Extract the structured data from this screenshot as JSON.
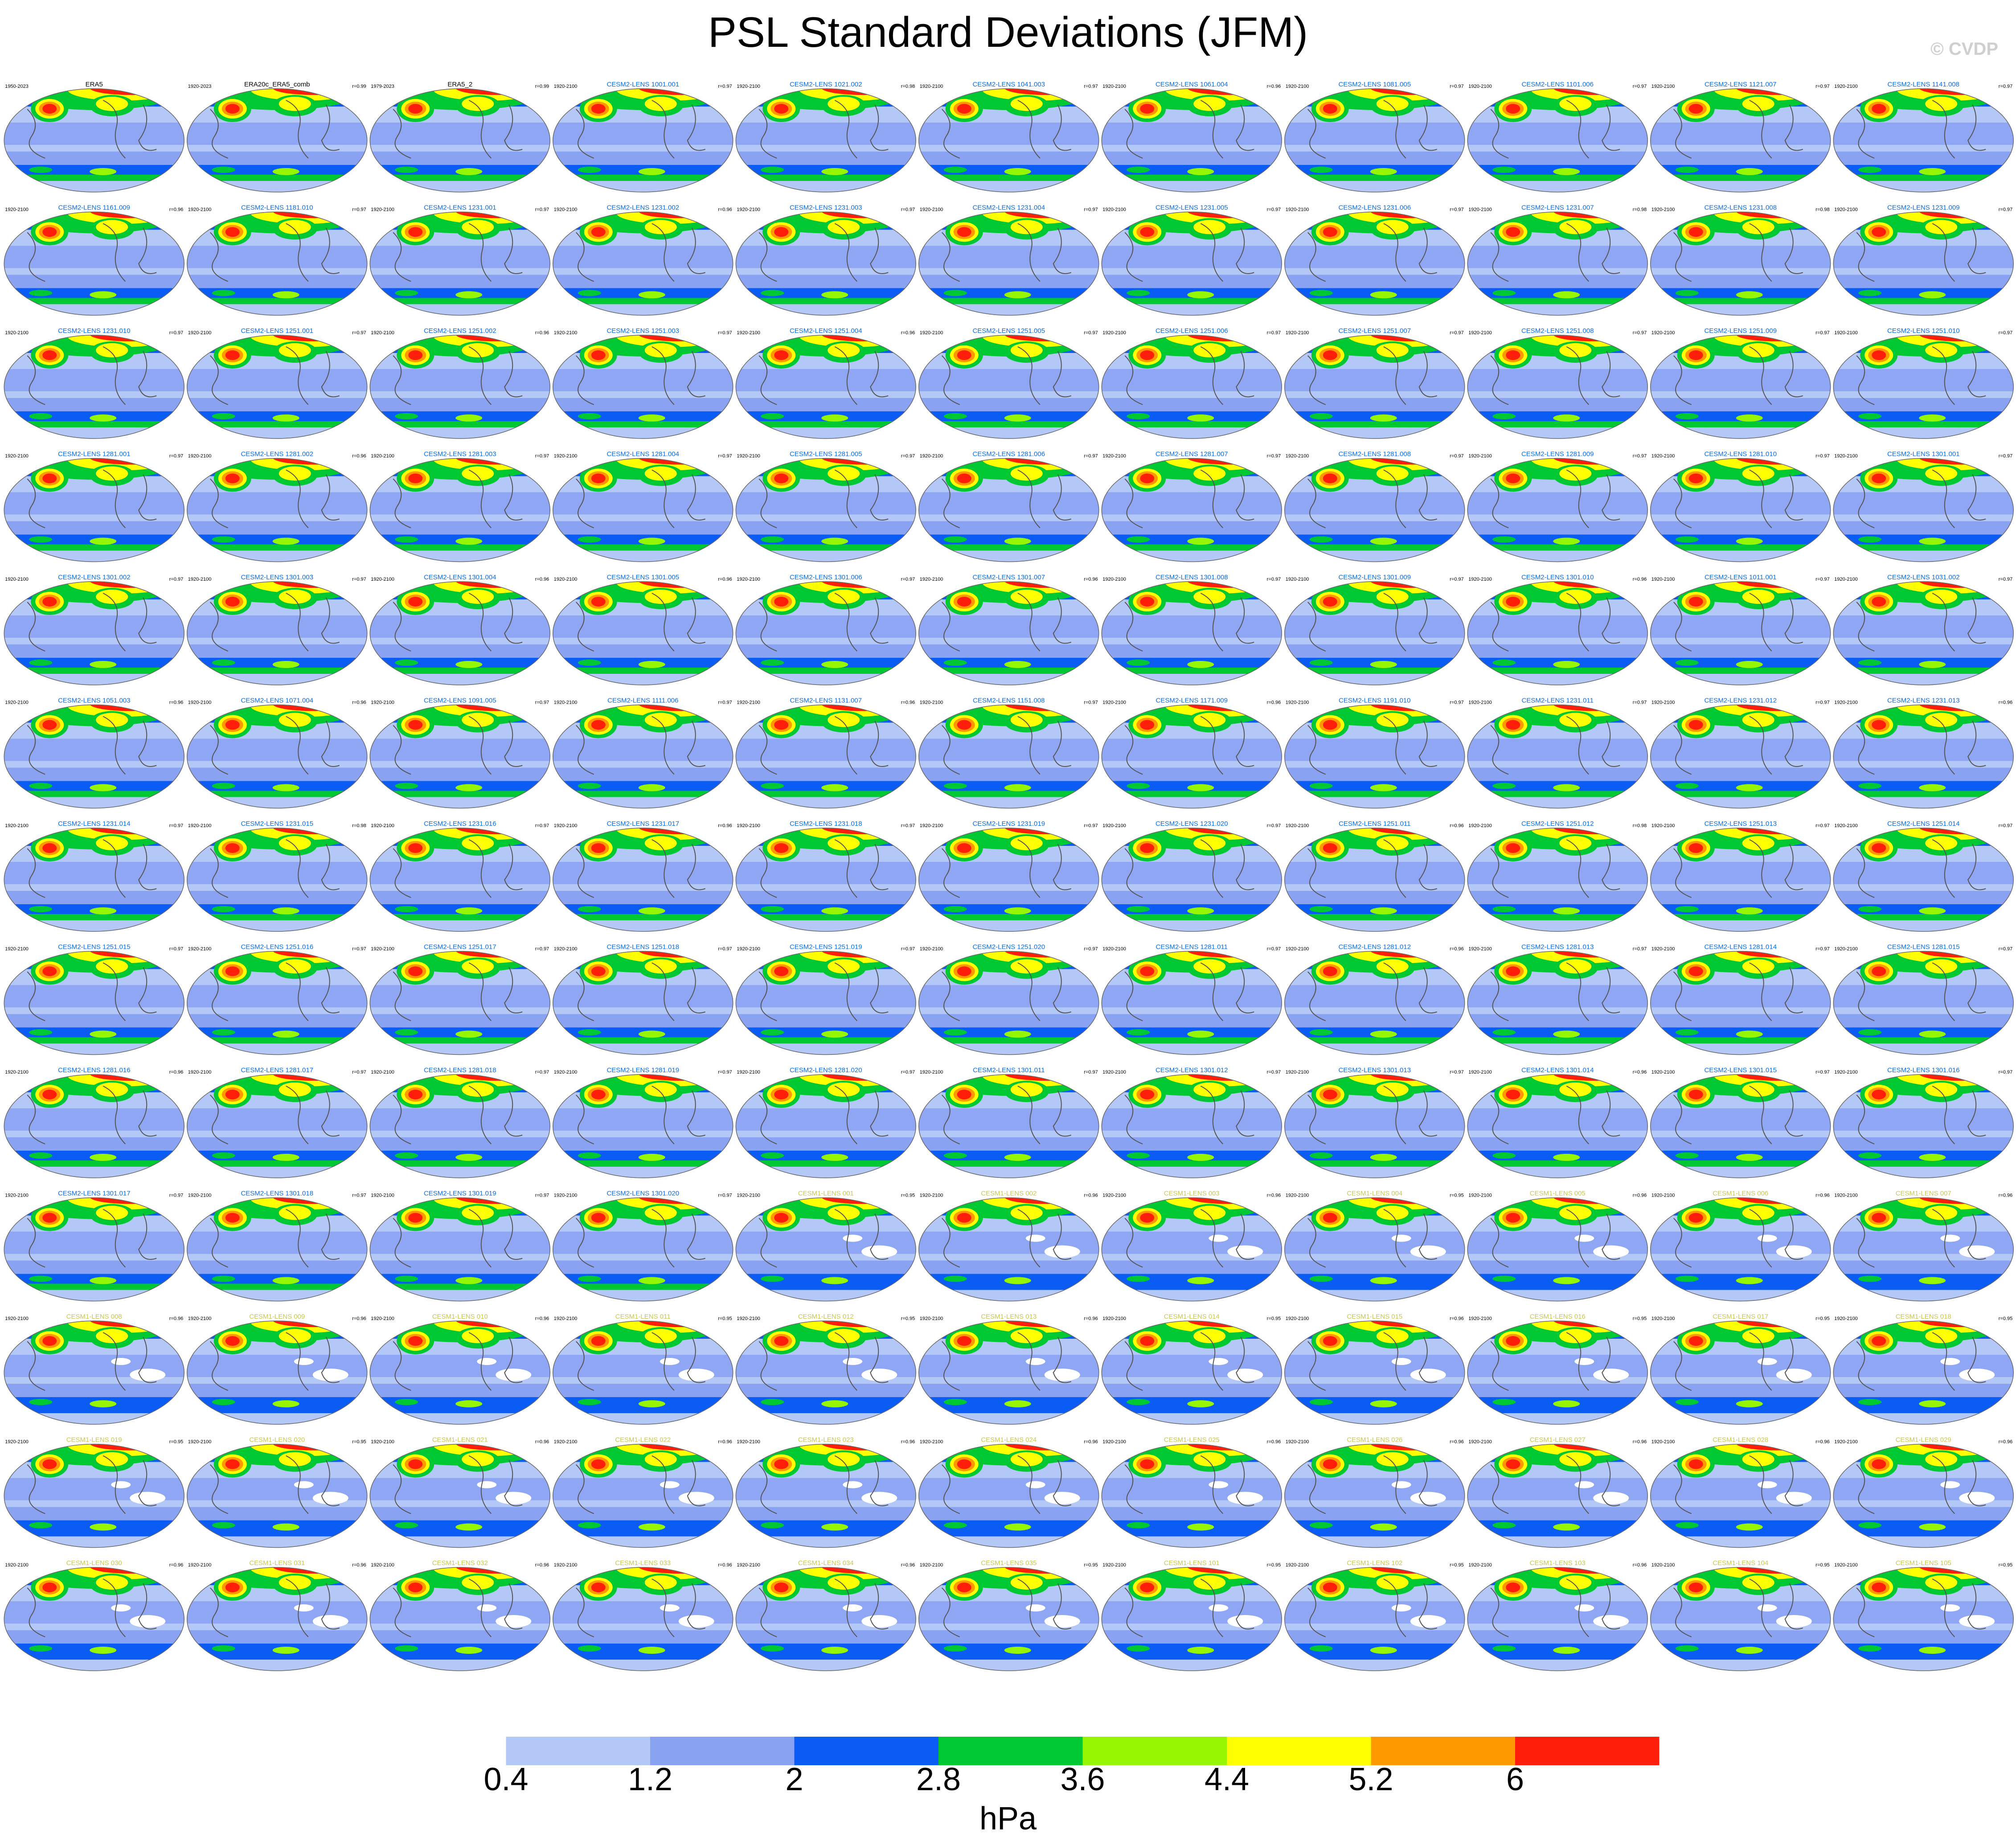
{
  "title": "PSL Standard Deviations (JFM)",
  "watermark": "© CVDP",
  "colorbar": {
    "unit": "hPa",
    "tick_labels": [
      "0.4",
      "1.2",
      "2",
      "2.8",
      "3.6",
      "4.4",
      "5.2",
      "6"
    ],
    "colors": [
      "#ffffff",
      "#b4c8f8",
      "#8aa2f2",
      "#0a5cf5",
      "#00c832",
      "#96f500",
      "#ffff00",
      "#ff9900",
      "#ff1e0a"
    ]
  },
  "chart_data": {
    "type": "heatmap",
    "title": "PSL Standard Deviations (JFM)",
    "variable": "PSL standard deviation",
    "season": "JFM",
    "unit": "hPa",
    "levels": [
      0.4,
      1.2,
      2,
      2.8,
      3.6,
      4.4,
      5.2,
      6
    ],
    "grid_shape": [
      13,
      11
    ],
    "observation_color": "#000000",
    "cesm2_color": "#0a6ee6",
    "cesm1_color": "#c8c850",
    "panels": [
      {
        "title": "ERA5",
        "years": "1950-2023",
        "r": "",
        "kind": "obs"
      },
      {
        "title": "ERA20c_ERA5_comb",
        "years": "1920-2023",
        "r": "r=0.99",
        "kind": "obs"
      },
      {
        "title": "ERA5_2",
        "years": "1979-2023",
        "r": "r=0.99",
        "kind": "obs"
      },
      {
        "title": "CESM2-LENS 1001.001",
        "years": "1920-2100",
        "r": "r=0.97",
        "kind": "cesm2"
      },
      {
        "title": "CESM2-LENS 1021.002",
        "years": "1920-2100",
        "r": "r=0.98",
        "kind": "cesm2"
      },
      {
        "title": "CESM2-LENS 1041.003",
        "years": "1920-2100",
        "r": "r=0.97",
        "kind": "cesm2"
      },
      {
        "title": "CESM2-LENS 1061.004",
        "years": "1920-2100",
        "r": "r=0.96",
        "kind": "cesm2"
      },
      {
        "title": "CESM2-LENS 1081.005",
        "years": "1920-2100",
        "r": "r=0.97",
        "kind": "cesm2"
      },
      {
        "title": "CESM2-LENS 1101.006",
        "years": "1920-2100",
        "r": "r=0.97",
        "kind": "cesm2"
      },
      {
        "title": "CESM2-LENS 1121.007",
        "years": "1920-2100",
        "r": "r=0.97",
        "kind": "cesm2"
      },
      {
        "title": "CESM2-LENS 1141.008",
        "years": "1920-2100",
        "r": "r=0.97",
        "kind": "cesm2"
      },
      {
        "title": "CESM2-LENS 1161.009",
        "years": "1920-2100",
        "r": "r=0.96",
        "kind": "cesm2"
      },
      {
        "title": "CESM2-LENS 1181.010",
        "years": "1920-2100",
        "r": "r=0.97",
        "kind": "cesm2"
      },
      {
        "title": "CESM2-LENS 1231.001",
        "years": "1920-2100",
        "r": "r=0.97",
        "kind": "cesm2"
      },
      {
        "title": "CESM2-LENS 1231.002",
        "years": "1920-2100",
        "r": "r=0.96",
        "kind": "cesm2"
      },
      {
        "title": "CESM2-LENS 1231.003",
        "years": "1920-2100",
        "r": "r=0.97",
        "kind": "cesm2"
      },
      {
        "title": "CESM2-LENS 1231.004",
        "years": "1920-2100",
        "r": "r=0.97",
        "kind": "cesm2"
      },
      {
        "title": "CESM2-LENS 1231.005",
        "years": "1920-2100",
        "r": "r=0.97",
        "kind": "cesm2"
      },
      {
        "title": "CESM2-LENS 1231.006",
        "years": "1920-2100",
        "r": "r=0.97",
        "kind": "cesm2"
      },
      {
        "title": "CESM2-LENS 1231.007",
        "years": "1920-2100",
        "r": "r=0.98",
        "kind": "cesm2"
      },
      {
        "title": "CESM2-LENS 1231.008",
        "years": "1920-2100",
        "r": "r=0.98",
        "kind": "cesm2"
      },
      {
        "title": "CESM2-LENS 1231.009",
        "years": "1920-2100",
        "r": "r=0.97",
        "kind": "cesm2"
      },
      {
        "title": "CESM2-LENS 1231.010",
        "years": "1920-2100",
        "r": "r=0.97",
        "kind": "cesm2"
      },
      {
        "title": "CESM2-LENS 1251.001",
        "years": "1920-2100",
        "r": "r=0.97",
        "kind": "cesm2"
      },
      {
        "title": "CESM2-LENS 1251.002",
        "years": "1920-2100",
        "r": "r=0.96",
        "kind": "cesm2"
      },
      {
        "title": "CESM2-LENS 1251.003",
        "years": "1920-2100",
        "r": "r=0.97",
        "kind": "cesm2"
      },
      {
        "title": "CESM2-LENS 1251.004",
        "years": "1920-2100",
        "r": "r=0.96",
        "kind": "cesm2"
      },
      {
        "title": "CESM2-LENS 1251.005",
        "years": "1920-2100",
        "r": "r=0.97",
        "kind": "cesm2"
      },
      {
        "title": "CESM2-LENS 1251.006",
        "years": "1920-2100",
        "r": "r=0.97",
        "kind": "cesm2"
      },
      {
        "title": "CESM2-LENS 1251.007",
        "years": "1920-2100",
        "r": "r=0.97",
        "kind": "cesm2"
      },
      {
        "title": "CESM2-LENS 1251.008",
        "years": "1920-2100",
        "r": "r=0.97",
        "kind": "cesm2"
      },
      {
        "title": "CESM2-LENS 1251.009",
        "years": "1920-2100",
        "r": "r=0.97",
        "kind": "cesm2"
      },
      {
        "title": "CESM2-LENS 1251.010",
        "years": "1920-2100",
        "r": "r=0.97",
        "kind": "cesm2"
      },
      {
        "title": "CESM2-LENS 1281.001",
        "years": "1920-2100",
        "r": "r=0.97",
        "kind": "cesm2"
      },
      {
        "title": "CESM2-LENS 1281.002",
        "years": "1920-2100",
        "r": "r=0.96",
        "kind": "cesm2"
      },
      {
        "title": "CESM2-LENS 1281.003",
        "years": "1920-2100",
        "r": "r=0.97",
        "kind": "cesm2"
      },
      {
        "title": "CESM2-LENS 1281.004",
        "years": "1920-2100",
        "r": "r=0.97",
        "kind": "cesm2"
      },
      {
        "title": "CESM2-LENS 1281.005",
        "years": "1920-2100",
        "r": "r=0.97",
        "kind": "cesm2"
      },
      {
        "title": "CESM2-LENS 1281.006",
        "years": "1920-2100",
        "r": "r=0.97",
        "kind": "cesm2"
      },
      {
        "title": "CESM2-LENS 1281.007",
        "years": "1920-2100",
        "r": "r=0.97",
        "kind": "cesm2"
      },
      {
        "title": "CESM2-LENS 1281.008",
        "years": "1920-2100",
        "r": "r=0.97",
        "kind": "cesm2"
      },
      {
        "title": "CESM2-LENS 1281.009",
        "years": "1920-2100",
        "r": "r=0.97",
        "kind": "cesm2"
      },
      {
        "title": "CESM2-LENS 1281.010",
        "years": "1920-2100",
        "r": "r=0.97",
        "kind": "cesm2"
      },
      {
        "title": "CESM2-LENS 1301.001",
        "years": "1920-2100",
        "r": "r=0.97",
        "kind": "cesm2"
      },
      {
        "title": "CESM2-LENS 1301.002",
        "years": "1920-2100",
        "r": "r=0.97",
        "kind": "cesm2"
      },
      {
        "title": "CESM2-LENS 1301.003",
        "years": "1920-2100",
        "r": "r=0.97",
        "kind": "cesm2"
      },
      {
        "title": "CESM2-LENS 1301.004",
        "years": "1920-2100",
        "r": "r=0.96",
        "kind": "cesm2"
      },
      {
        "title": "CESM2-LENS 1301.005",
        "years": "1920-2100",
        "r": "r=0.96",
        "kind": "cesm2"
      },
      {
        "title": "CESM2-LENS 1301.006",
        "years": "1920-2100",
        "r": "r=0.97",
        "kind": "cesm2"
      },
      {
        "title": "CESM2-LENS 1301.007",
        "years": "1920-2100",
        "r": "r=0.96",
        "kind": "cesm2"
      },
      {
        "title": "CESM2-LENS 1301.008",
        "years": "1920-2100",
        "r": "r=0.97",
        "kind": "cesm2"
      },
      {
        "title": "CESM2-LENS 1301.009",
        "years": "1920-2100",
        "r": "r=0.97",
        "kind": "cesm2"
      },
      {
        "title": "CESM2-LENS 1301.010",
        "years": "1920-2100",
        "r": "r=0.96",
        "kind": "cesm2"
      },
      {
        "title": "CESM2-LENS 1011.001",
        "years": "1920-2100",
        "r": "r=0.97",
        "kind": "cesm2"
      },
      {
        "title": "CESM2-LENS 1031.002",
        "years": "1920-2100",
        "r": "r=0.97",
        "kind": "cesm2"
      },
      {
        "title": "CESM2-LENS 1051.003",
        "years": "1920-2100",
        "r": "r=0.96",
        "kind": "cesm2"
      },
      {
        "title": "CESM2-LENS 1071.004",
        "years": "1920-2100",
        "r": "r=0.96",
        "kind": "cesm2"
      },
      {
        "title": "CESM2-LENS 1091.005",
        "years": "1920-2100",
        "r": "r=0.97",
        "kind": "cesm2"
      },
      {
        "title": "CESM2-LENS 1111.006",
        "years": "1920-2100",
        "r": "r=0.97",
        "kind": "cesm2"
      },
      {
        "title": "CESM2-LENS 1131.007",
        "years": "1920-2100",
        "r": "r=0.96",
        "kind": "cesm2"
      },
      {
        "title": "CESM2-LENS 1151.008",
        "years": "1920-2100",
        "r": "r=0.97",
        "kind": "cesm2"
      },
      {
        "title": "CESM2-LENS 1171.009",
        "years": "1920-2100",
        "r": "r=0.96",
        "kind": "cesm2"
      },
      {
        "title": "CESM2-LENS 1191.010",
        "years": "1920-2100",
        "r": "r=0.97",
        "kind": "cesm2"
      },
      {
        "title": "CESM2-LENS 1231.011",
        "years": "1920-2100",
        "r": "r=0.97",
        "kind": "cesm2"
      },
      {
        "title": "CESM2-LENS 1231.012",
        "years": "1920-2100",
        "r": "r=0.97",
        "kind": "cesm2"
      },
      {
        "title": "CESM2-LENS 1231.013",
        "years": "1920-2100",
        "r": "r=0.96",
        "kind": "cesm2"
      },
      {
        "title": "CESM2-LENS 1231.014",
        "years": "1920-2100",
        "r": "r=0.97",
        "kind": "cesm2"
      },
      {
        "title": "CESM2-LENS 1231.015",
        "years": "1920-2100",
        "r": "r=0.98",
        "kind": "cesm2"
      },
      {
        "title": "CESM2-LENS 1231.016",
        "years": "1920-2100",
        "r": "r=0.97",
        "kind": "cesm2"
      },
      {
        "title": "CESM2-LENS 1231.017",
        "years": "1920-2100",
        "r": "r=0.96",
        "kind": "cesm2"
      },
      {
        "title": "CESM2-LENS 1231.018",
        "years": "1920-2100",
        "r": "r=0.97",
        "kind": "cesm2"
      },
      {
        "title": "CESM2-LENS 1231.019",
        "years": "1920-2100",
        "r": "r=0.97",
        "kind": "cesm2"
      },
      {
        "title": "CESM2-LENS 1231.020",
        "years": "1920-2100",
        "r": "r=0.97",
        "kind": "cesm2"
      },
      {
        "title": "CESM2-LENS 1251.011",
        "years": "1920-2100",
        "r": "r=0.96",
        "kind": "cesm2"
      },
      {
        "title": "CESM2-LENS 1251.012",
        "years": "1920-2100",
        "r": "r=0.98",
        "kind": "cesm2"
      },
      {
        "title": "CESM2-LENS 1251.013",
        "years": "1920-2100",
        "r": "r=0.97",
        "kind": "cesm2"
      },
      {
        "title": "CESM2-LENS 1251.014",
        "years": "1920-2100",
        "r": "r=0.97",
        "kind": "cesm2"
      },
      {
        "title": "CESM2-LENS 1251.015",
        "years": "1920-2100",
        "r": "r=0.97",
        "kind": "cesm2"
      },
      {
        "title": "CESM2-LENS 1251.016",
        "years": "1920-2100",
        "r": "r=0.97",
        "kind": "cesm2"
      },
      {
        "title": "CESM2-LENS 1251.017",
        "years": "1920-2100",
        "r": "r=0.97",
        "kind": "cesm2"
      },
      {
        "title": "CESM2-LENS 1251.018",
        "years": "1920-2100",
        "r": "r=0.97",
        "kind": "cesm2"
      },
      {
        "title": "CESM2-LENS 1251.019",
        "years": "1920-2100",
        "r": "r=0.97",
        "kind": "cesm2"
      },
      {
        "title": "CESM2-LENS 1251.020",
        "years": "1920-2100",
        "r": "r=0.97",
        "kind": "cesm2"
      },
      {
        "title": "CESM2-LENS 1281.011",
        "years": "1920-2100",
        "r": "r=0.97",
        "kind": "cesm2"
      },
      {
        "title": "CESM2-LENS 1281.012",
        "years": "1920-2100",
        "r": "r=0.96",
        "kind": "cesm2"
      },
      {
        "title": "CESM2-LENS 1281.013",
        "years": "1920-2100",
        "r": "r=0.97",
        "kind": "cesm2"
      },
      {
        "title": "CESM2-LENS 1281.014",
        "years": "1920-2100",
        "r": "r=0.97",
        "kind": "cesm2"
      },
      {
        "title": "CESM2-LENS 1281.015",
        "years": "1920-2100",
        "r": "r=0.97",
        "kind": "cesm2"
      },
      {
        "title": "CESM2-LENS 1281.016",
        "years": "1920-2100",
        "r": "r=0.96",
        "kind": "cesm2"
      },
      {
        "title": "CESM2-LENS 1281.017",
        "years": "1920-2100",
        "r": "r=0.97",
        "kind": "cesm2"
      },
      {
        "title": "CESM2-LENS 1281.018",
        "years": "1920-2100",
        "r": "r=0.97",
        "kind": "cesm2"
      },
      {
        "title": "CESM2-LENS 1281.019",
        "years": "1920-2100",
        "r": "r=0.97",
        "kind": "cesm2"
      },
      {
        "title": "CESM2-LENS 1281.020",
        "years": "1920-2100",
        "r": "r=0.97",
        "kind": "cesm2"
      },
      {
        "title": "CESM2-LENS 1301.011",
        "years": "1920-2100",
        "r": "r=0.97",
        "kind": "cesm2"
      },
      {
        "title": "CESM2-LENS 1301.012",
        "years": "1920-2100",
        "r": "r=0.97",
        "kind": "cesm2"
      },
      {
        "title": "CESM2-LENS 1301.013",
        "years": "1920-2100",
        "r": "r=0.97",
        "kind": "cesm2"
      },
      {
        "title": "CESM2-LENS 1301.014",
        "years": "1920-2100",
        "r": "r=0.96",
        "kind": "cesm2"
      },
      {
        "title": "CESM2-LENS 1301.015",
        "years": "1920-2100",
        "r": "r=0.97",
        "kind": "cesm2"
      },
      {
        "title": "CESM2-LENS 1301.016",
        "years": "1920-2100",
        "r": "r=0.97",
        "kind": "cesm2"
      },
      {
        "title": "CESM2-LENS 1301.017",
        "years": "1920-2100",
        "r": "r=0.97",
        "kind": "cesm2"
      },
      {
        "title": "CESM2-LENS 1301.018",
        "years": "1920-2100",
        "r": "r=0.97",
        "kind": "cesm2"
      },
      {
        "title": "CESM2-LENS 1301.019",
        "years": "1920-2100",
        "r": "r=0.97",
        "kind": "cesm2"
      },
      {
        "title": "CESM2-LENS 1301.020",
        "years": "1920-2100",
        "r": "r=0.97",
        "kind": "cesm2"
      },
      {
        "title": "CESM1-LENS 001",
        "years": "1920-2100",
        "r": "r=0.95",
        "kind": "cesm1"
      },
      {
        "title": "CESM1-LENS 002",
        "years": "1920-2100",
        "r": "r=0.96",
        "kind": "cesm1"
      },
      {
        "title": "CESM1-LENS 003",
        "years": "1920-2100",
        "r": "r=0.96",
        "kind": "cesm1"
      },
      {
        "title": "CESM1-LENS 004",
        "years": "1920-2100",
        "r": "r=0.95",
        "kind": "cesm1"
      },
      {
        "title": "CESM1-LENS 005",
        "years": "1920-2100",
        "r": "r=0.96",
        "kind": "cesm1"
      },
      {
        "title": "CESM1-LENS 006",
        "years": "1920-2100",
        "r": "r=0.96",
        "kind": "cesm1"
      },
      {
        "title": "CESM1-LENS 007",
        "years": "1920-2100",
        "r": "r=0.96",
        "kind": "cesm1"
      },
      {
        "title": "CESM1-LENS 008",
        "years": "1920-2100",
        "r": "r=0.96",
        "kind": "cesm1"
      },
      {
        "title": "CESM1-LENS 009",
        "years": "1920-2100",
        "r": "r=0.96",
        "kind": "cesm1"
      },
      {
        "title": "CESM1-LENS 010",
        "years": "1920-2100",
        "r": "r=0.96",
        "kind": "cesm1"
      },
      {
        "title": "CESM1-LENS 011",
        "years": "1920-2100",
        "r": "r=0.95",
        "kind": "cesm1"
      },
      {
        "title": "CESM1-LENS 012",
        "years": "1920-2100",
        "r": "r=0.95",
        "kind": "cesm1"
      },
      {
        "title": "CESM1-LENS 013",
        "years": "1920-2100",
        "r": "r=0.96",
        "kind": "cesm1"
      },
      {
        "title": "CESM1-LENS 014",
        "years": "1920-2100",
        "r": "r=0.95",
        "kind": "cesm1"
      },
      {
        "title": "CESM1-LENS 015",
        "years": "1920-2100",
        "r": "r=0.96",
        "kind": "cesm1"
      },
      {
        "title": "CESM1-LENS 016",
        "years": "1920-2100",
        "r": "r=0.95",
        "kind": "cesm1"
      },
      {
        "title": "CESM1-LENS 017",
        "years": "1920-2100",
        "r": "r=0.95",
        "kind": "cesm1"
      },
      {
        "title": "CESM1-LENS 018",
        "years": "1920-2100",
        "r": "r=0.95",
        "kind": "cesm1"
      },
      {
        "title": "CESM1-LENS 019",
        "years": "1920-2100",
        "r": "r=0.95",
        "kind": "cesm1"
      },
      {
        "title": "CESM1-LENS 020",
        "years": "1920-2100",
        "r": "r=0.95",
        "kind": "cesm1"
      },
      {
        "title": "CESM1-LENS 021",
        "years": "1920-2100",
        "r": "r=0.96",
        "kind": "cesm1"
      },
      {
        "title": "CESM1-LENS 022",
        "years": "1920-2100",
        "r": "r=0.96",
        "kind": "cesm1"
      },
      {
        "title": "CESM1-LENS 023",
        "years": "1920-2100",
        "r": "r=0.96",
        "kind": "cesm1"
      },
      {
        "title": "CESM1-LENS 024",
        "years": "1920-2100",
        "r": "r=0.96",
        "kind": "cesm1"
      },
      {
        "title": "CESM1-LENS 025",
        "years": "1920-2100",
        "r": "r=0.96",
        "kind": "cesm1"
      },
      {
        "title": "CESM1-LENS 026",
        "years": "1920-2100",
        "r": "r=0.96",
        "kind": "cesm1"
      },
      {
        "title": "CESM1-LENS 027",
        "years": "1920-2100",
        "r": "r=0.96",
        "kind": "cesm1"
      },
      {
        "title": "CESM1-LENS 028",
        "years": "1920-2100",
        "r": "r=0.96",
        "kind": "cesm1"
      },
      {
        "title": "CESM1-LENS 029",
        "years": "1920-2100",
        "r": "r=0.96",
        "kind": "cesm1"
      },
      {
        "title": "CESM1-LENS 030",
        "years": "1920-2100",
        "r": "r=0.96",
        "kind": "cesm1"
      },
      {
        "title": "CESM1-LENS 031",
        "years": "1920-2100",
        "r": "r=0.96",
        "kind": "cesm1"
      },
      {
        "title": "CESM1-LENS 032",
        "years": "1920-2100",
        "r": "r=0.96",
        "kind": "cesm1"
      },
      {
        "title": "CESM1-LENS 033",
        "years": "1920-2100",
        "r": "r=0.96",
        "kind": "cesm1"
      },
      {
        "title": "CESM1-LENS 034",
        "years": "1920-2100",
        "r": "r=0.96",
        "kind": "cesm1"
      },
      {
        "title": "CESM1-LENS 035",
        "years": "1920-2100",
        "r": "r=0.95",
        "kind": "cesm1"
      },
      {
        "title": "CESM1-LENS 101",
        "years": "1920-2100",
        "r": "r=0.95",
        "kind": "cesm1"
      },
      {
        "title": "CESM1-LENS 102",
        "years": "1920-2100",
        "r": "r=0.95",
        "kind": "cesm1"
      },
      {
        "title": "CESM1-LENS 103",
        "years": "1920-2100",
        "r": "r=0.96",
        "kind": "cesm1"
      },
      {
        "title": "CESM1-LENS 104",
        "years": "1920-2100",
        "r": "r=0.95",
        "kind": "cesm1"
      },
      {
        "title": "CESM1-LENS 105",
        "years": "1920-2100",
        "r": "r=0.95",
        "kind": "cesm1"
      }
    ]
  }
}
